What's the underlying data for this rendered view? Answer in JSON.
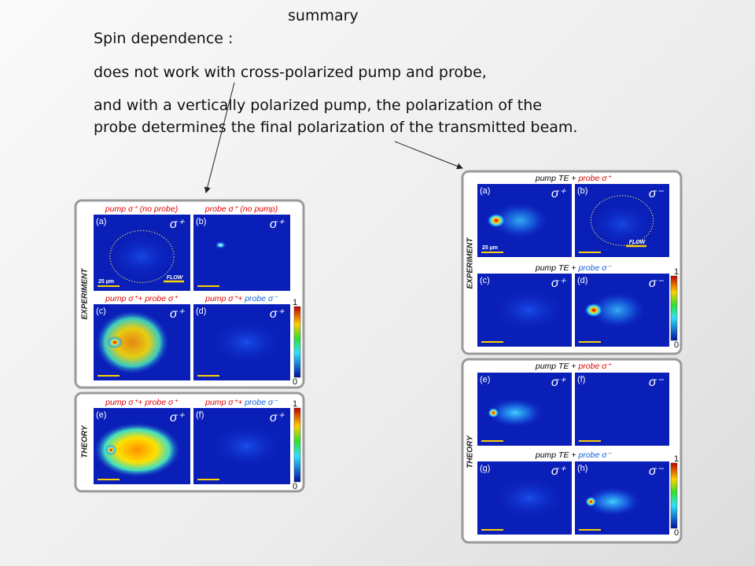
{
  "title": "summary",
  "body": [
    "Spin dependence :",
    "does not work with cross-polarized pump and probe,",
    "and with a vertically polarized pump, the polarization of the",
    "probe determines the final polarization of the transmitted beam."
  ],
  "figures": [
    {
      "sections": [
        "EXPERIMENT",
        "THEORY"
      ],
      "headers": [
        [
          {
            "text": "pump σ⁺ (no probe)",
            "color": "#e00000"
          }
        ],
        [
          {
            "text": "probe σ⁺ (no pump)",
            "color": "#e00000"
          }
        ],
        [
          {
            "text": "pump σ⁺+ probe σ⁺",
            "color": "#e00000"
          }
        ],
        [
          {
            "text": "pump σ⁺+ ",
            "color": "#e00000"
          },
          {
            "text": "probe σ⁻",
            "color": "#1060e0"
          }
        ],
        [
          {
            "text": "pump σ⁺+ probe σ⁺",
            "color": "#e00000"
          }
        ],
        [
          {
            "text": "pump σ⁺+ ",
            "color": "#e00000"
          },
          {
            "text": "probe σ⁻",
            "color": "#1060e0"
          }
        ]
      ],
      "panels": [
        {
          "label": "(a)",
          "polarization": "σ⁺",
          "scale_label": "25 µm",
          "flow_label": "FLOW"
        },
        {
          "label": "(b)",
          "polarization": "σ⁺"
        },
        {
          "label": "(c)",
          "polarization": "σ⁺"
        },
        {
          "label": "(d)",
          "polarization": "σ⁺"
        },
        {
          "label": "(e)",
          "polarization": "σ⁺"
        },
        {
          "label": "(f)",
          "polarization": "σ⁺"
        }
      ],
      "colorbars": [
        [
          1,
          0
        ],
        [
          1,
          0
        ]
      ]
    },
    {
      "sections": [
        "EXPERIMENT",
        "THEORY"
      ],
      "headers": [
        [
          {
            "text": "pump TE + ",
            "color": "#000000"
          },
          {
            "text": "probe σ⁺",
            "color": "#e00000"
          }
        ],
        [
          {
            "text": "pump TE + ",
            "color": "#000000"
          },
          {
            "text": "probe σ⁻",
            "color": "#1060e0"
          }
        ],
        [
          {
            "text": "pump TE + ",
            "color": "#000000"
          },
          {
            "text": "probe σ⁺",
            "color": "#e00000"
          }
        ],
        [
          {
            "text": "pump TE + ",
            "color": "#000000"
          },
          {
            "text": "probe σ⁻",
            "color": "#1060e0"
          }
        ]
      ],
      "panels": [
        {
          "label": "(a)",
          "polarization": "σ⁺",
          "scale_label": "25 µm"
        },
        {
          "label": "(b)",
          "polarization": "σ⁻",
          "flow_label": "FLOW"
        },
        {
          "label": "(c)",
          "polarization": "σ⁺"
        },
        {
          "label": "(d)",
          "polarization": "σ⁻"
        },
        {
          "label": "(e)",
          "polarization": "σ⁺"
        },
        {
          "label": "(f)",
          "polarization": "σ⁻"
        },
        {
          "label": "(g)",
          "polarization": "σ⁺"
        },
        {
          "label": "(h)",
          "polarization": "σ⁻"
        }
      ],
      "colorbars": [
        [
          1,
          0
        ],
        [
          1,
          0
        ]
      ]
    }
  ]
}
